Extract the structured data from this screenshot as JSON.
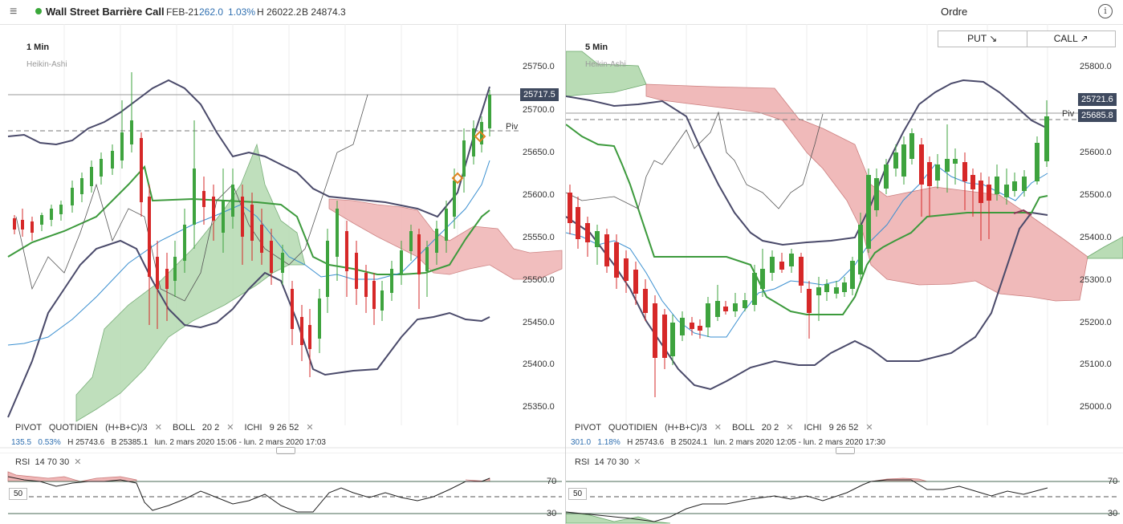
{
  "header": {
    "menu_icon": "hamburger-icon",
    "status_dot_color": "#3aa83a",
    "title": "Wall Street Barrière Call",
    "expiry": "FEB-21",
    "change": "262.0",
    "change_pct": "1.03%",
    "high": "H 26022.2",
    "low": "B 24874.3",
    "order_label": "Ordre",
    "info_icon": "info-icon"
  },
  "order_buttons": {
    "put_label": "PUT ↘",
    "call_label": "CALL ↗"
  },
  "colors": {
    "up_candle": "#3ea33e",
    "down_candle": "#d62828",
    "bollinger": "#4a4a6a",
    "cloud_bull": "#b9dcb5",
    "cloud_bear": "#f0b7b7",
    "tenkan": "#3a8fd0",
    "kijun": "#3c9a3c",
    "price_box": "#3f4a5f"
  },
  "left_chart": {
    "timeframe": "1 Min",
    "chart_style": "Heikin-Ashi",
    "price_ticks": [
      "25750.0",
      "25700.0",
      "25650.0",
      "25600.0",
      "25550.0",
      "25500.0",
      "25450.0",
      "25400.0",
      "25350.0"
    ],
    "last_price": "25717.5",
    "pivot_label": "Piv",
    "indicators": {
      "pivot": "PIVOT",
      "pivot_period": "QUOTIDIEN",
      "pivot_formula": "(H+B+C)/3",
      "boll": "BOLL",
      "boll_params": "20  2",
      "ichi": "ICHI",
      "ichi_params": "9  26  52"
    },
    "stats": {
      "change": "135.5",
      "change_pct": "0.53%",
      "high": "H 25743.6",
      "low": "B 25385.1",
      "range": "lun. 2 mars 2020 15:06 - lun. 2 mars 2020 17:03"
    },
    "rsi": {
      "label": "RSI",
      "params": "14  70  30",
      "mid_value": "50",
      "upper": "70",
      "lower": "30"
    }
  },
  "right_chart": {
    "timeframe": "5 Min",
    "chart_style": "Heikin-Ashi",
    "price_ticks": [
      "25800.0",
      "25700.0",
      "25600.0",
      "25500.0",
      "25400.0",
      "25300.0",
      "25200.0",
      "25100.0",
      "25000.0"
    ],
    "last_price": "25721.6",
    "pivot_price": "25685.8",
    "pivot_label": "Piv",
    "indicators": {
      "pivot": "PIVOT",
      "pivot_period": "QUOTIDIEN",
      "pivot_formula": "(H+B+C)/3",
      "boll": "BOLL",
      "boll_params": "20  2",
      "ichi": "ICHI",
      "ichi_params": "9  26  52"
    },
    "stats": {
      "change": "301.0",
      "change_pct": "1.18%",
      "high": "H 25743.6",
      "low": "B 25024.1",
      "range": "lun. 2 mars 2020 12:05 - lun. 2 mars 2020 17:30"
    },
    "rsi": {
      "label": "RSI",
      "params": "14  70  30",
      "mid_value": "50",
      "upper": "70",
      "lower": "30"
    }
  }
}
